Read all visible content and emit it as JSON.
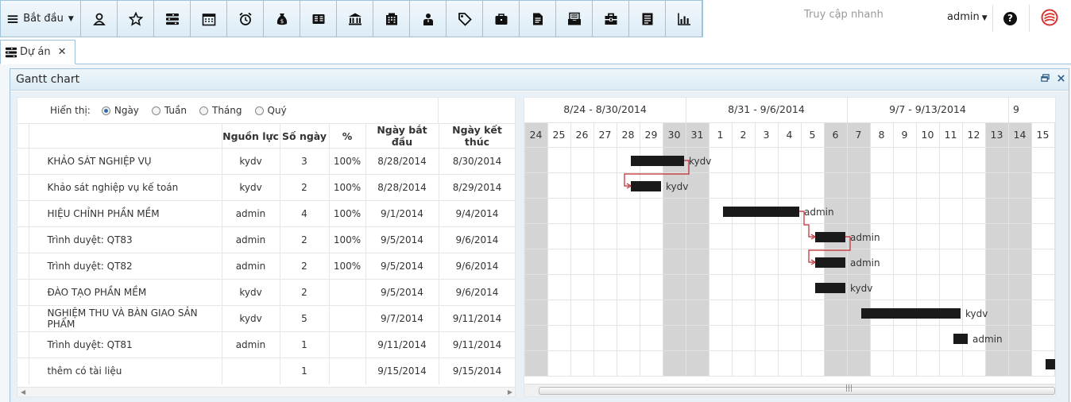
{
  "toolbar": {
    "start_label": "Bắt đầu",
    "icons": [
      "user-icon",
      "star-icon",
      "project-list-icon",
      "calendar-icon",
      "alarm-clock-icon",
      "money-bag-icon",
      "accounting-icon",
      "bank-icon",
      "office-building-icon",
      "contact-icon",
      "tag-icon",
      "briefcase-icon",
      "report-icon",
      "inbox-icon",
      "toolbox-icon",
      "ledger-icon",
      "bar-chart-icon"
    ],
    "quick_access": "Truy cập nhanh",
    "user": "admin",
    "help": "?"
  },
  "tab": {
    "label": "Dự án",
    "close": "✕"
  },
  "panel": {
    "title": "Gantt chart"
  },
  "filter": {
    "label": "Hiển thị:",
    "options": [
      "Ngày",
      "Tuần",
      "Tháng",
      "Quý"
    ],
    "selected": "Ngày"
  },
  "table": {
    "columns": [
      "",
      "Nguồn lực",
      "Số ngày",
      "%",
      "Ngày bắt đầu",
      "Ngày kết thúc"
    ],
    "rows": [
      {
        "name": "KHẢO SÁT NGHIỆP VỤ",
        "resource": "kydv",
        "days": "3",
        "pct": "100%",
        "start": "8/28/2014",
        "end": "8/30/2014"
      },
      {
        "name": "Khảo sát nghiệp vụ kế toán",
        "resource": "kydv",
        "days": "2",
        "pct": "100%",
        "start": "8/28/2014",
        "end": "8/29/2014"
      },
      {
        "name": "HIỆU CHỈNH PHẦN MỀM",
        "resource": "admin",
        "days": "4",
        "pct": "100%",
        "start": "9/1/2014",
        "end": "9/4/2014"
      },
      {
        "name": "Trình duyệt: QT83",
        "resource": "admin",
        "days": "2",
        "pct": "100%",
        "start": "9/5/2014",
        "end": "9/6/2014"
      },
      {
        "name": "Trình duyệt: QT82",
        "resource": "admin",
        "days": "2",
        "pct": "100%",
        "start": "9/5/2014",
        "end": "9/6/2014"
      },
      {
        "name": "ĐÀO TẠO PHẦN MỀM",
        "resource": "kydv",
        "days": "2",
        "pct": "",
        "start": "9/5/2014",
        "end": "9/6/2014"
      },
      {
        "name": "NGHIỆM THU VÀ BÀN GIAO SẢN PHẨM",
        "resource": "kydv",
        "days": "5",
        "pct": "",
        "start": "9/7/2014",
        "end": "9/11/2014"
      },
      {
        "name": "Trình duyệt: QT81",
        "resource": "admin",
        "days": "1",
        "pct": "",
        "start": "9/11/2014",
        "end": "9/11/2014"
      },
      {
        "name": "thêm có tài liệu",
        "resource": "",
        "days": "1",
        "pct": "",
        "start": "9/15/2014",
        "end": "9/15/2014"
      }
    ]
  },
  "gantt": {
    "weeks": [
      "8/24 - 8/30/2014",
      "8/31 - 9/6/2014",
      "9/7 - 9/13/2014",
      "9"
    ],
    "days": [
      "24",
      "25",
      "26",
      "27",
      "28",
      "29",
      "30",
      "31",
      "1",
      "2",
      "3",
      "4",
      "5",
      "6",
      "7",
      "8",
      "9",
      "10",
      "11",
      "12",
      "13",
      "14",
      "15"
    ],
    "weekend_days": [
      "24",
      "30",
      "31",
      "6",
      "7",
      "13",
      "14"
    ],
    "bars": [
      {
        "label": "kydv"
      },
      {
        "label": "kydv"
      },
      {
        "label": "admin"
      },
      {
        "label": "admin"
      },
      {
        "label": "admin"
      },
      {
        "label": "kydv"
      },
      {
        "label": "kydv"
      },
      {
        "label": "admin"
      },
      {
        "label": ""
      }
    ],
    "colors": {
      "bar": "#1a1a1a",
      "weekend": "#d4d4d4",
      "link": "#c0272d",
      "label": "#333333"
    }
  }
}
